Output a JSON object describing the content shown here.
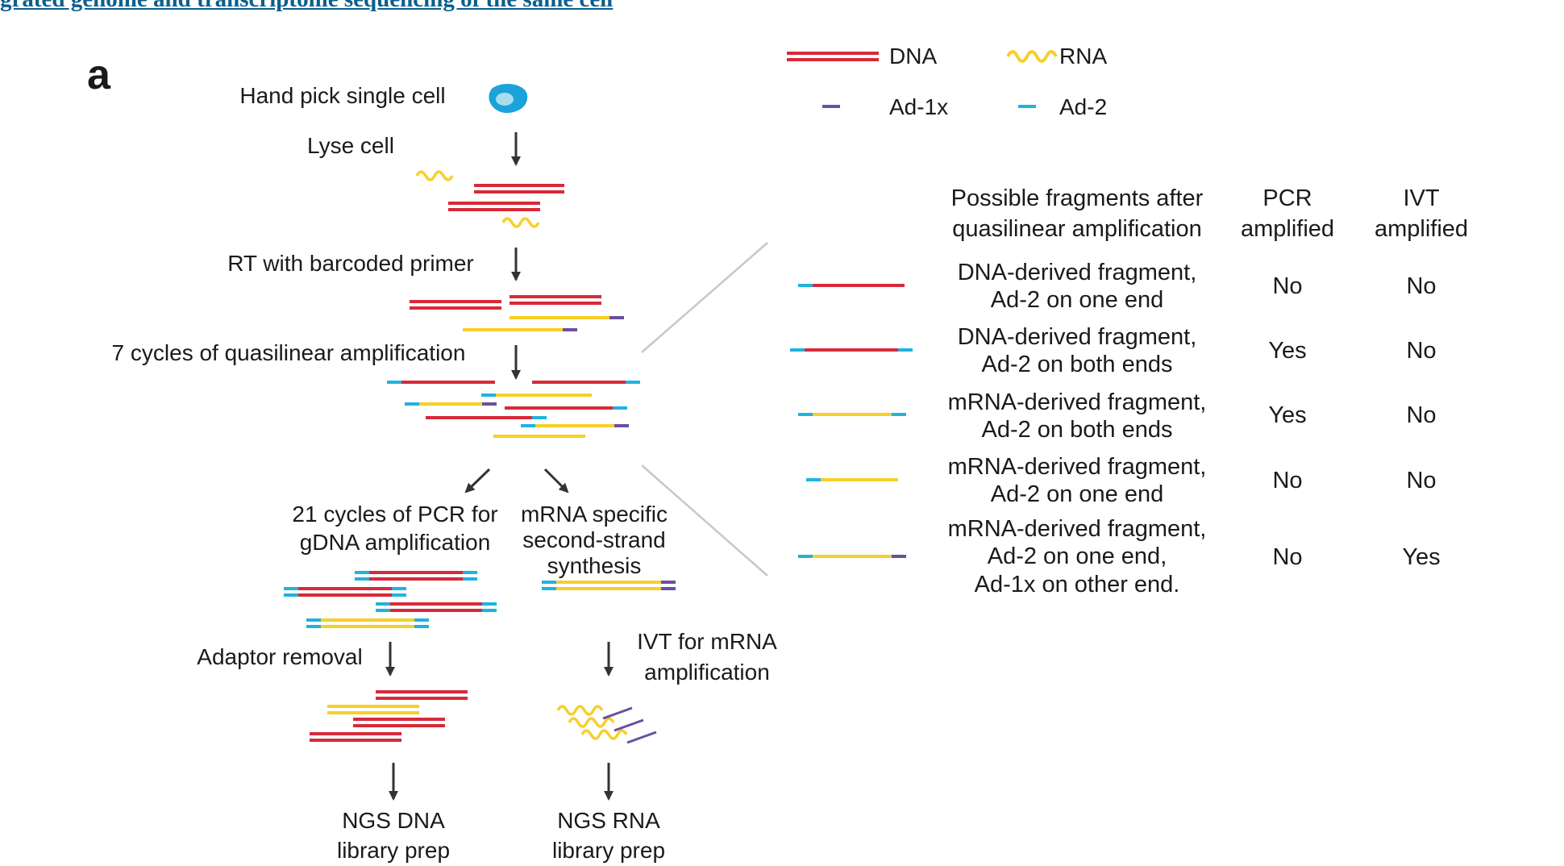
{
  "header": {
    "link_text": "grated genome and transcriptome sequencing of the same cell"
  },
  "figure": {
    "panel_label": "a",
    "colors": {
      "dna": "#d72a3a",
      "rna": "#f7cf28",
      "ad1x": "#6a4fa0",
      "ad2": "#1fb3de",
      "arrow": "#333333",
      "cell": "#1aa3db",
      "nucleus": "#a9dcef",
      "callout": "#c8c8c8"
    },
    "legend": {
      "dna": "DNA",
      "rna": "RNA",
      "ad1x": "Ad-1x",
      "ad2": "Ad-2"
    },
    "steps": {
      "pick": "Hand pick single cell",
      "lyse": "Lyse cell",
      "rt": "RT with barcoded primer",
      "quasi": "7 cycles of quasilinear amplification",
      "pcr": [
        "21 cycles of PCR for",
        "gDNA amplification"
      ],
      "second": [
        "mRNA specific",
        "second-strand",
        "synthesis"
      ],
      "adaptor": "Adaptor removal",
      "ivt": [
        "IVT for mRNA",
        "amplification"
      ],
      "ngs_dna": [
        "NGS DNA",
        "library prep"
      ],
      "ngs_rna": [
        "NGS RNA",
        "library prep"
      ]
    },
    "table": {
      "headers": {
        "fragment": [
          "Possible fragments after",
          "quasilinear amplification"
        ],
        "pcr": [
          "PCR",
          "amplified"
        ],
        "ivt": [
          "IVT",
          "amplified"
        ]
      },
      "rows": [
        {
          "desc": [
            "DNA-derived fragment,",
            "Ad-2 on one end"
          ],
          "pcr": "No",
          "ivt": "No"
        },
        {
          "desc": [
            "DNA-derived fragment,",
            "Ad-2 on both ends"
          ],
          "pcr": "Yes",
          "ivt": "No"
        },
        {
          "desc": [
            "mRNA-derived fragment,",
            "Ad-2 on both ends"
          ],
          "pcr": "Yes",
          "ivt": "No"
        },
        {
          "desc": [
            "mRNA-derived fragment,",
            "Ad-2 on one end"
          ],
          "pcr": "No",
          "ivt": "No"
        },
        {
          "desc": [
            "mRNA-derived fragment,",
            "Ad-2 on one end,",
            "Ad-1x on other end."
          ],
          "pcr": "No",
          "ivt": "Yes"
        }
      ]
    }
  }
}
